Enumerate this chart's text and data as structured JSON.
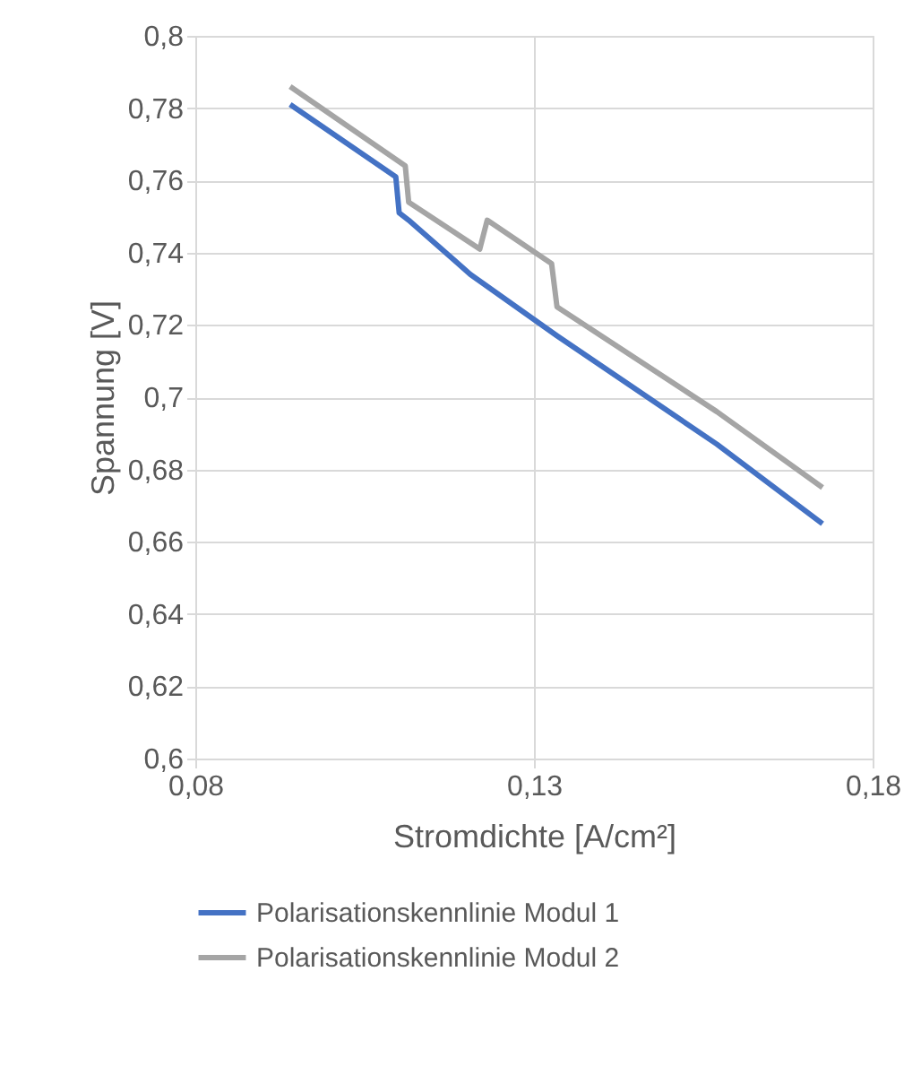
{
  "chart_data": {
    "type": "line",
    "xlabel": "Stromdichte [A/cm²]",
    "ylabel": "Spannung [V]",
    "xlim": [
      0.08,
      0.18
    ],
    "ylim": [
      0.6,
      0.8
    ],
    "xticks": [
      {
        "value": 0.08,
        "label": "0,08"
      },
      {
        "value": 0.13,
        "label": "0,13"
      },
      {
        "value": 0.18,
        "label": "0,18"
      }
    ],
    "yticks": [
      {
        "value": 0.6,
        "label": "0,6"
      },
      {
        "value": 0.62,
        "label": "0,62"
      },
      {
        "value": 0.64,
        "label": "0,64"
      },
      {
        "value": 0.66,
        "label": "0,66"
      },
      {
        "value": 0.68,
        "label": "0,68"
      },
      {
        "value": 0.7,
        "label": "0,7"
      },
      {
        "value": 0.72,
        "label": "0,72"
      },
      {
        "value": 0.74,
        "label": "0,74"
      },
      {
        "value": 0.76,
        "label": "0,76"
      },
      {
        "value": 0.78,
        "label": "0,78"
      },
      {
        "value": 0.8,
        "label": "0,8"
      }
    ],
    "grid": true,
    "legend": "bottom",
    "marker": "none",
    "line_style": "solid",
    "series": [
      {
        "name": "Polarisationskennlinie Modul 1",
        "color": "#4472c4",
        "x": [
          0.094,
          0.1096,
          0.1101,
          0.1115,
          0.1206,
          0.1334,
          0.157,
          0.1726
        ],
        "values": [
          0.781,
          0.761,
          0.751,
          0.749,
          0.734,
          0.717,
          0.687,
          0.665
        ]
      },
      {
        "name": "Polarisationskennlinie Modul 2",
        "color": "#a5a5a5",
        "x": [
          0.094,
          0.111,
          0.1115,
          0.122,
          0.1231,
          0.1326,
          0.1334,
          0.157,
          0.1726
        ],
        "values": [
          0.786,
          0.764,
          0.754,
          0.741,
          0.749,
          0.737,
          0.725,
          0.696,
          0.675
        ]
      }
    ]
  }
}
